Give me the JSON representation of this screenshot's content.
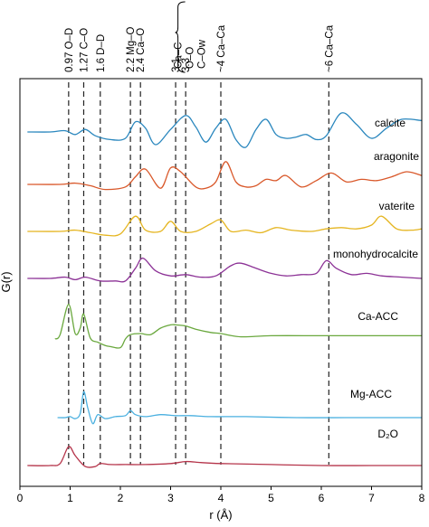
{
  "chart_data": {
    "type": "line",
    "title": "",
    "xlabel": "r (Å)",
    "ylabel": "G(r)",
    "xlim": [
      0,
      8
    ],
    "xticks": [
      "0",
      "1",
      "2",
      "3",
      "4",
      "5",
      "6",
      "7",
      "8"
    ],
    "yticks_shown": false,
    "grid": false,
    "legend": "none (series labelled inline at right)",
    "vertical_reference_lines": [
      {
        "x": 0.97,
        "label": "0.97  O–D"
      },
      {
        "x": 1.27,
        "label": "1.27  C–O"
      },
      {
        "x": 1.6,
        "label": "1.6  D–D"
      },
      {
        "x": 2.2,
        "label": "2.2  Mg–O"
      },
      {
        "x": 2.4,
        "label": "2.4  Ca–O"
      },
      {
        "x": 3.1,
        "label": "3.1"
      },
      {
        "x": 3.3,
        "label": "3.3"
      },
      {
        "x": 4.0,
        "label": "~4  Ca–Ca"
      },
      {
        "x": 6.15,
        "label": "~6  Ca–Ca"
      }
    ],
    "bracket_labels": [
      "Ca–C",
      "O–O",
      "C–Ow"
    ],
    "series_units": "stacked G(r), arbitrary units (offset per series)",
    "series": [
      {
        "name": "calcite",
        "color": "#2a87be",
        "x": [
          0.15,
          0.6,
          0.9,
          1.1,
          1.3,
          1.5,
          1.8,
          2.1,
          2.3,
          2.5,
          2.7,
          3.0,
          3.3,
          3.5,
          3.7,
          3.9,
          4.1,
          4.3,
          4.5,
          4.7,
          4.9,
          5.1,
          5.3,
          5.5,
          5.7,
          5.9,
          6.1,
          6.4,
          6.7,
          7.0,
          7.3,
          7.6,
          8.0
        ],
        "y": [
          0.0,
          0.0,
          0.1,
          -0.2,
          0.2,
          -0.3,
          -0.6,
          -0.5,
          0.8,
          0.3,
          -1.0,
          0.2,
          1.3,
          0.4,
          -0.8,
          0.3,
          1.0,
          -0.6,
          -1.2,
          0.2,
          1.0,
          -0.2,
          -0.5,
          -0.4,
          -0.2,
          -0.6,
          -0.3,
          1.5,
          0.6,
          -0.5,
          0.3,
          1.0,
          0.9
        ]
      },
      {
        "name": "aragonite",
        "color": "#d9582a",
        "x": [
          0.15,
          0.8,
          1.1,
          1.4,
          1.7,
          2.1,
          2.3,
          2.5,
          2.8,
          3.0,
          3.2,
          3.5,
          3.7,
          3.9,
          4.1,
          4.3,
          4.5,
          4.7,
          4.9,
          5.1,
          5.3,
          5.6,
          5.9,
          6.2,
          6.5,
          6.8,
          7.1,
          7.4,
          7.7,
          8.0
        ],
        "y": [
          0.0,
          0.0,
          0.1,
          -0.1,
          -0.4,
          -0.2,
          0.6,
          1.2,
          -0.3,
          1.3,
          1.0,
          -0.2,
          -0.3,
          0.2,
          1.8,
          0.2,
          -0.2,
          -0.1,
          0.4,
          0.3,
          0.7,
          -0.2,
          0.3,
          0.9,
          0.2,
          0.4,
          0.3,
          0.6,
          1.0,
          0.7
        ]
      },
      {
        "name": "vaterite",
        "color": "#e5b520",
        "x": [
          0.15,
          0.8,
          1.1,
          1.4,
          1.7,
          2.0,
          2.3,
          2.5,
          2.8,
          3.0,
          3.2,
          3.5,
          3.8,
          4.0,
          4.2,
          4.5,
          4.8,
          5.1,
          5.4,
          5.8,
          6.1,
          6.4,
          6.7,
          7.0,
          7.2,
          7.5,
          7.8,
          8.0
        ],
        "y": [
          0.0,
          0.0,
          0.1,
          -0.1,
          -0.3,
          -0.2,
          1.2,
          0.1,
          0.0,
          0.8,
          0.0,
          0.0,
          0.6,
          0.9,
          0.0,
          0.1,
          -0.1,
          0.3,
          0.1,
          0.0,
          0.2,
          0.3,
          0.2,
          0.5,
          1.2,
          0.2,
          0.1,
          0.2
        ]
      },
      {
        "name": "monohydrocalcite",
        "color": "#8c3296",
        "x": [
          0.15,
          0.6,
          0.9,
          1.1,
          1.3,
          1.6,
          1.9,
          2.1,
          2.3,
          2.45,
          2.7,
          3.0,
          3.3,
          3.6,
          3.9,
          4.2,
          4.4,
          4.7,
          5.0,
          5.3,
          5.6,
          5.9,
          6.1,
          6.3,
          6.6,
          6.9,
          7.2,
          7.6,
          8.0
        ],
        "y": [
          0.0,
          0.0,
          0.1,
          -0.1,
          0.1,
          -0.2,
          -0.2,
          -0.2,
          0.8,
          1.6,
          0.6,
          0.2,
          0.3,
          0.1,
          0.2,
          1.0,
          1.2,
          0.8,
          0.4,
          0.2,
          0.3,
          0.4,
          1.4,
          0.8,
          0.3,
          0.4,
          0.2,
          0.1,
          0.0
        ]
      },
      {
        "name": "Ca-ACC",
        "color": "#6aa83e",
        "x": [
          0.7,
          0.8,
          0.97,
          1.1,
          1.2,
          1.27,
          1.4,
          1.55,
          1.7,
          1.8,
          2.0,
          2.1,
          2.2,
          2.4,
          2.6,
          2.8,
          3.0,
          3.1,
          3.3,
          3.5,
          3.8,
          4.0,
          4.4,
          5.0,
          6.0,
          7.0,
          8.0
        ],
        "y": [
          0.0,
          0.4,
          3.2,
          0.5,
          1.0,
          2.3,
          0.1,
          -0.3,
          -0.6,
          -0.7,
          -0.8,
          0.0,
          0.4,
          0.5,
          0.4,
          1.0,
          1.3,
          1.3,
          1.2,
          0.9,
          0.6,
          0.5,
          0.2,
          0.3,
          0.3,
          0.3,
          0.3
        ]
      },
      {
        "name": "Mg-ACC",
        "color": "#4ab0e0",
        "x": [
          0.75,
          0.9,
          1.0,
          1.1,
          1.2,
          1.27,
          1.35,
          1.45,
          1.55,
          1.7,
          1.9,
          2.1,
          2.2,
          2.3,
          2.5,
          2.8,
          3.1,
          3.4,
          3.8,
          4.5,
          5.5,
          6.5,
          7.5,
          8.0
        ],
        "y": [
          0.0,
          0.0,
          0.1,
          -0.1,
          0.4,
          2.6,
          1.0,
          -0.6,
          0.3,
          -0.1,
          0.1,
          0.2,
          0.7,
          0.3,
          0.1,
          0.3,
          0.2,
          0.2,
          0.1,
          0.1,
          0.0,
          0.0,
          0.0,
          0.0
        ]
      },
      {
        "name": "D₂O",
        "color": "#b5344a",
        "x": [
          0.15,
          0.6,
          0.8,
          0.97,
          1.1,
          1.3,
          1.5,
          1.6,
          1.8,
          2.1,
          2.5,
          3.0,
          3.3,
          3.6,
          4.0,
          5.0,
          6.0,
          7.0,
          8.0
        ],
        "y": [
          0.0,
          0.0,
          0.2,
          1.9,
          1.0,
          -0.1,
          -0.1,
          0.2,
          0.1,
          0.1,
          0.1,
          0.2,
          0.4,
          0.3,
          0.2,
          0.1,
          0.0,
          0.0,
          0.0
        ]
      }
    ]
  }
}
